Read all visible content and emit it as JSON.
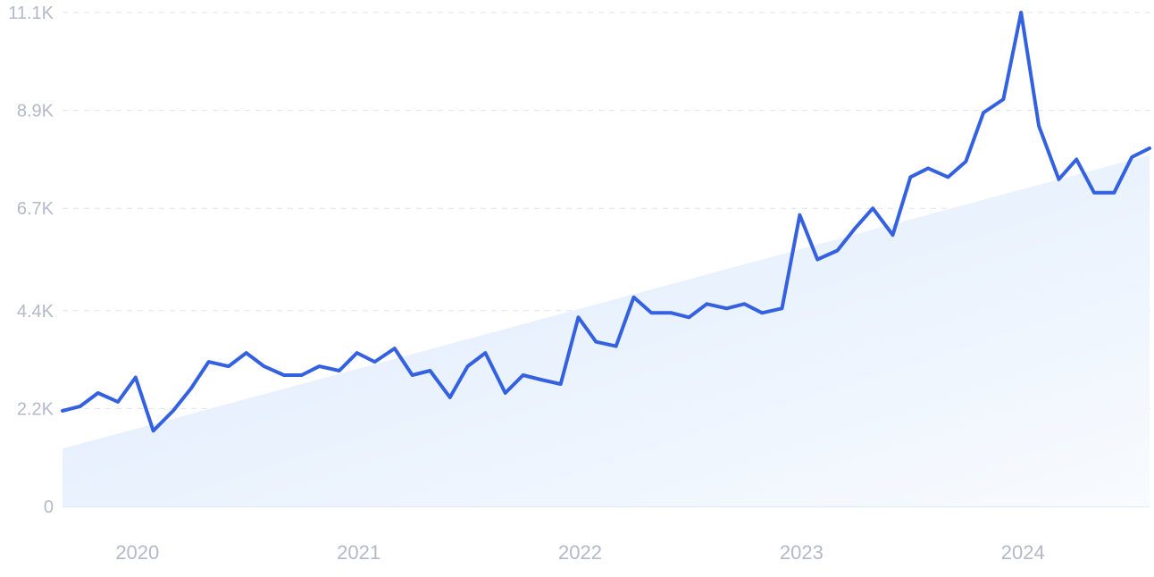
{
  "chart_data": {
    "type": "line",
    "title": "",
    "xlabel": "",
    "ylabel": "",
    "ylim": [
      0,
      11100
    ],
    "xlim": [
      2019.67,
      2024.58
    ],
    "grid": true,
    "y_ticks": [
      {
        "value": 0,
        "label": "0"
      },
      {
        "value": 2200,
        "label": "2.2K"
      },
      {
        "value": 4400,
        "label": "4.4K"
      },
      {
        "value": 6700,
        "label": "6.7K"
      },
      {
        "value": 8900,
        "label": "8.9K"
      },
      {
        "value": 11100,
        "label": "11.1K"
      }
    ],
    "x_ticks": [
      {
        "value": 2020,
        "label": "2020"
      },
      {
        "value": 2021,
        "label": "2021"
      },
      {
        "value": 2022,
        "label": "2022"
      },
      {
        "value": 2023,
        "label": "2023"
      },
      {
        "value": 2024,
        "label": "2024"
      }
    ],
    "trend": {
      "start": [
        2019.67,
        1300
      ],
      "end": [
        2024.58,
        7900
      ]
    },
    "colors": {
      "line": "#3461e0",
      "trend_fill": "#dbe9fb",
      "grid": "#dfe3ea",
      "tick_text": "#b3b9c7"
    },
    "series": [
      {
        "x": [
          2019.67,
          2019.75,
          2019.83,
          2019.92,
          2020.0,
          2020.08,
          2020.17,
          2020.25,
          2020.33,
          2020.42,
          2020.5,
          2020.58,
          2020.67,
          2020.75,
          2020.83,
          2020.92,
          2021.0,
          2021.08,
          2021.17,
          2021.25,
          2021.33,
          2021.42,
          2021.5,
          2021.58,
          2021.67,
          2021.75,
          2021.83,
          2021.92,
          2022.0,
          2022.08,
          2022.17,
          2022.25,
          2022.33,
          2022.42,
          2022.5,
          2022.58,
          2022.67,
          2022.75,
          2022.83,
          2022.92,
          2023.0,
          2023.08,
          2023.17,
          2023.25,
          2023.33,
          2023.42,
          2023.5,
          2023.58,
          2023.67,
          2023.75,
          2023.83,
          2023.92,
          2024.0,
          2024.08,
          2024.17,
          2024.25,
          2024.33,
          2024.42,
          2024.5,
          2024.58
        ],
        "values": [
          2150,
          2250,
          2550,
          2350,
          2900,
          1700,
          2150,
          2650,
          3250,
          3150,
          3450,
          3150,
          2950,
          2950,
          3150,
          3050,
          3450,
          3250,
          3550,
          2950,
          3050,
          2450,
          3150,
          3450,
          2550,
          2950,
          2850,
          2750,
          4250,
          3700,
          3600,
          4700,
          4350,
          4350,
          4250,
          4550,
          4450,
          4550,
          4350,
          4450,
          6550,
          5550,
          5750,
          6250,
          6700,
          6100,
          7400,
          7600,
          7400,
          7750,
          8850,
          9150,
          11100,
          8550,
          7350,
          7800,
          7050,
          7050,
          7850,
          8050
        ]
      }
    ]
  }
}
